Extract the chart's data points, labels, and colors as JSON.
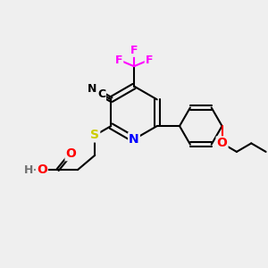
{
  "bg_color": "#efefef",
  "bond_color": "#000000",
  "bond_width": 1.5,
  "atom_colors": {
    "N": "#0000ff",
    "O": "#ff0000",
    "S": "#cccc00",
    "F": "#ff00ff",
    "H": "#707070"
  },
  "font_size_atom": 10,
  "font_size_small": 8
}
